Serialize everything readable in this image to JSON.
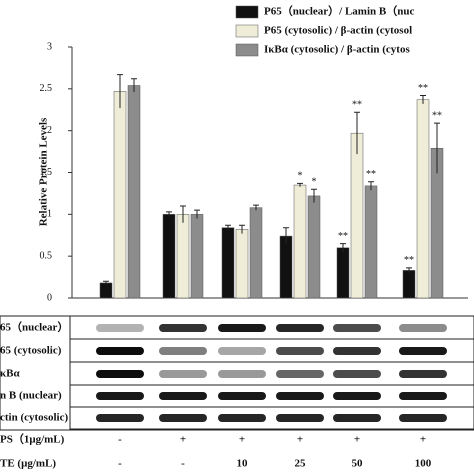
{
  "chart_data": {
    "type": "bar",
    "y_label": "Relative Protein Levels",
    "ylim": [
      0,
      3
    ],
    "yticks": [
      0,
      0.5,
      1,
      1.5,
      2,
      2.5,
      3
    ],
    "categories": [
      null,
      null,
      null,
      null,
      null,
      null
    ],
    "series": [
      {
        "name": "P65（nuclear）/ Lamin B（nuc",
        "color": "#111111",
        "values": [
          0.18,
          1.0,
          0.84,
          0.74,
          0.6,
          0.33
        ],
        "errors": [
          0.02,
          0.03,
          0.03,
          0.1,
          0.05,
          0.03
        ],
        "significance": [
          null,
          null,
          null,
          null,
          "**",
          "**"
        ]
      },
      {
        "name": "P65 (cytosolic) / β-actin (cytosol",
        "color": "#efedd8",
        "values": [
          2.47,
          1.0,
          0.82,
          1.35,
          1.97,
          2.37
        ],
        "errors": [
          0.2,
          0.1,
          0.05,
          0.02,
          0.25,
          0.05
        ],
        "significance": [
          null,
          null,
          null,
          "*",
          "**",
          "**"
        ]
      },
      {
        "name": "IκBα (cytosolic) / β-actin (cytos",
        "color": "#8c8c8c",
        "values": [
          2.54,
          1.0,
          1.08,
          1.22,
          1.34,
          1.79
        ],
        "errors": [
          0.08,
          0.05,
          0.03,
          0.08,
          0.05,
          0.3
        ],
        "significance": [
          null,
          null,
          null,
          "*",
          "**",
          "**"
        ]
      }
    ]
  },
  "blot": {
    "rows": [
      "65（nuclear）",
      "65 (cytosolic)",
      "κBα",
      "n B (nuclear)",
      "ctin (cytosolic)"
    ],
    "treatments": [
      {
        "label": "PS（1μg/mL)",
        "lanes": [
          "-",
          "+",
          "+",
          "+",
          "+",
          "+"
        ]
      },
      {
        "label": "TE (μg/mL)",
        "lanes": [
          "-",
          "-",
          "10",
          "25",
          "50",
          "100"
        ]
      }
    ]
  }
}
